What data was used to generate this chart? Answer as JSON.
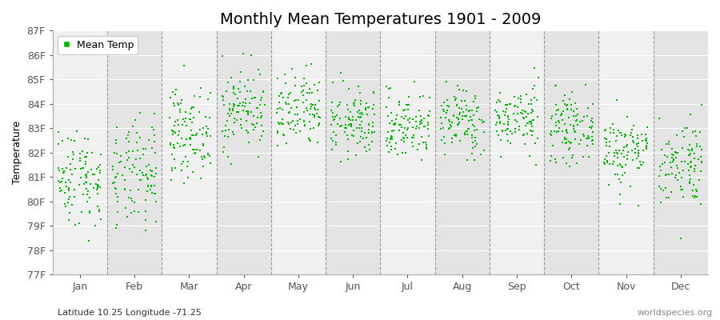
{
  "title": "Monthly Mean Temperatures 1901 - 2009",
  "ylabel": "Temperature",
  "xlabel_bottom_left": "Latitude 10.25 Longitude -71.25",
  "xlabel_bottom_right": "worldspecies.org",
  "ylim": [
    77,
    87
  ],
  "yticks": [
    77,
    78,
    79,
    80,
    81,
    82,
    83,
    84,
    85,
    86,
    87
  ],
  "ytick_labels": [
    "77F",
    "78F",
    "79F",
    "80F",
    "81F",
    "82F",
    "83F",
    "84F",
    "85F",
    "86F",
    "87F"
  ],
  "months": [
    "Jan",
    "Feb",
    "Mar",
    "Apr",
    "May",
    "Jun",
    "Jul",
    "Aug",
    "Sep",
    "Oct",
    "Nov",
    "Dec"
  ],
  "marker_color": "#00BB00",
  "bg_color": "#FFFFFF",
  "band_colors": [
    "#F0F0F0",
    "#E4E4E4"
  ],
  "dashed_line_color": "#999999",
  "title_fontsize": 14,
  "axis_fontsize": 9,
  "tick_fontsize": 9,
  "legend_fontsize": 9,
  "n_years": 109,
  "seed": 42,
  "monthly_mean_F": [
    81.0,
    81.0,
    82.8,
    83.8,
    83.6,
    83.2,
    83.1,
    83.3,
    83.4,
    83.0,
    82.1,
    81.6
  ],
  "monthly_std_F": [
    1.0,
    1.1,
    0.9,
    0.85,
    0.8,
    0.7,
    0.7,
    0.7,
    0.65,
    0.65,
    0.75,
    0.9
  ]
}
